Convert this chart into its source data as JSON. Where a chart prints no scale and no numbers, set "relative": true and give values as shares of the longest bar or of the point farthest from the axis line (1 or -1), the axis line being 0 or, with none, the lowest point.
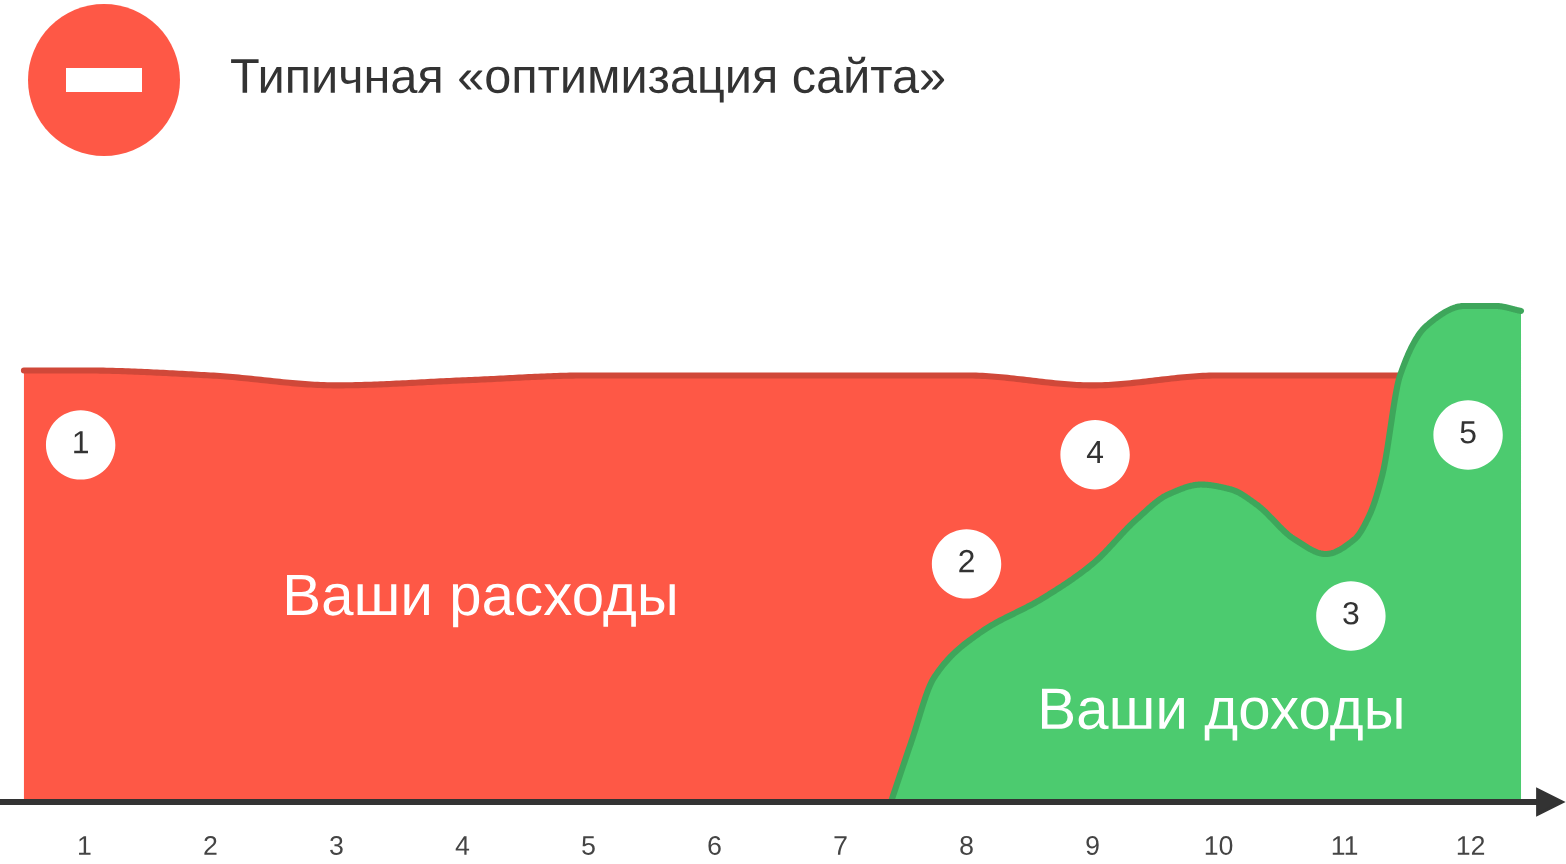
{
  "chart_data": {
    "type": "area",
    "title": "Типичная «оптимизация сайта»",
    "relative": true,
    "xlim": [
      0.33,
      12.63
    ],
    "xticks": [
      1,
      2,
      3,
      4,
      5,
      6,
      7,
      8,
      9,
      10,
      11,
      12
    ],
    "series": [
      {
        "name": "Ваши расходы",
        "color": "#fe5846",
        "x": [
          0.52,
          1,
          2,
          3,
          4,
          5,
          6,
          7,
          8,
          9,
          10,
          11,
          11.45
        ],
        "values": [
          0.87,
          0.87,
          0.86,
          0.84,
          0.85,
          0.86,
          0.86,
          0.86,
          0.86,
          0.84,
          0.86,
          0.86,
          0.86
        ]
      },
      {
        "name": "Ваши доходы",
        "color": "#4ccb6f",
        "x": [
          7.4,
          7.56,
          7.74,
          8.1,
          8.6,
          9.0,
          9.35,
          9.6,
          9.86,
          10.1,
          10.3,
          10.6,
          10.85,
          11.08,
          11.2,
          11.3,
          11.44,
          11.65,
          11.95,
          12.2,
          12.4
        ],
        "values": [
          0,
          0.12,
          0.25,
          0.34,
          0.41,
          0.48,
          0.57,
          0.62,
          0.64,
          0.63,
          0.6,
          0.53,
          0.5,
          0.53,
          0.58,
          0.66,
          0.86,
          0.96,
          1.0,
          1.0,
          0.99
        ]
      }
    ],
    "annotations": [
      {
        "text": "1",
        "x": 0.97,
        "y": 0.72
      },
      {
        "text": "2",
        "x": 8.0,
        "y": 0.48
      },
      {
        "text": "3",
        "x": 11.05,
        "y": 0.375
      },
      {
        "text": "4",
        "x": 9.02,
        "y": 0.7
      },
      {
        "text": "5",
        "x": 11.98,
        "y": 0.74
      }
    ]
  }
}
